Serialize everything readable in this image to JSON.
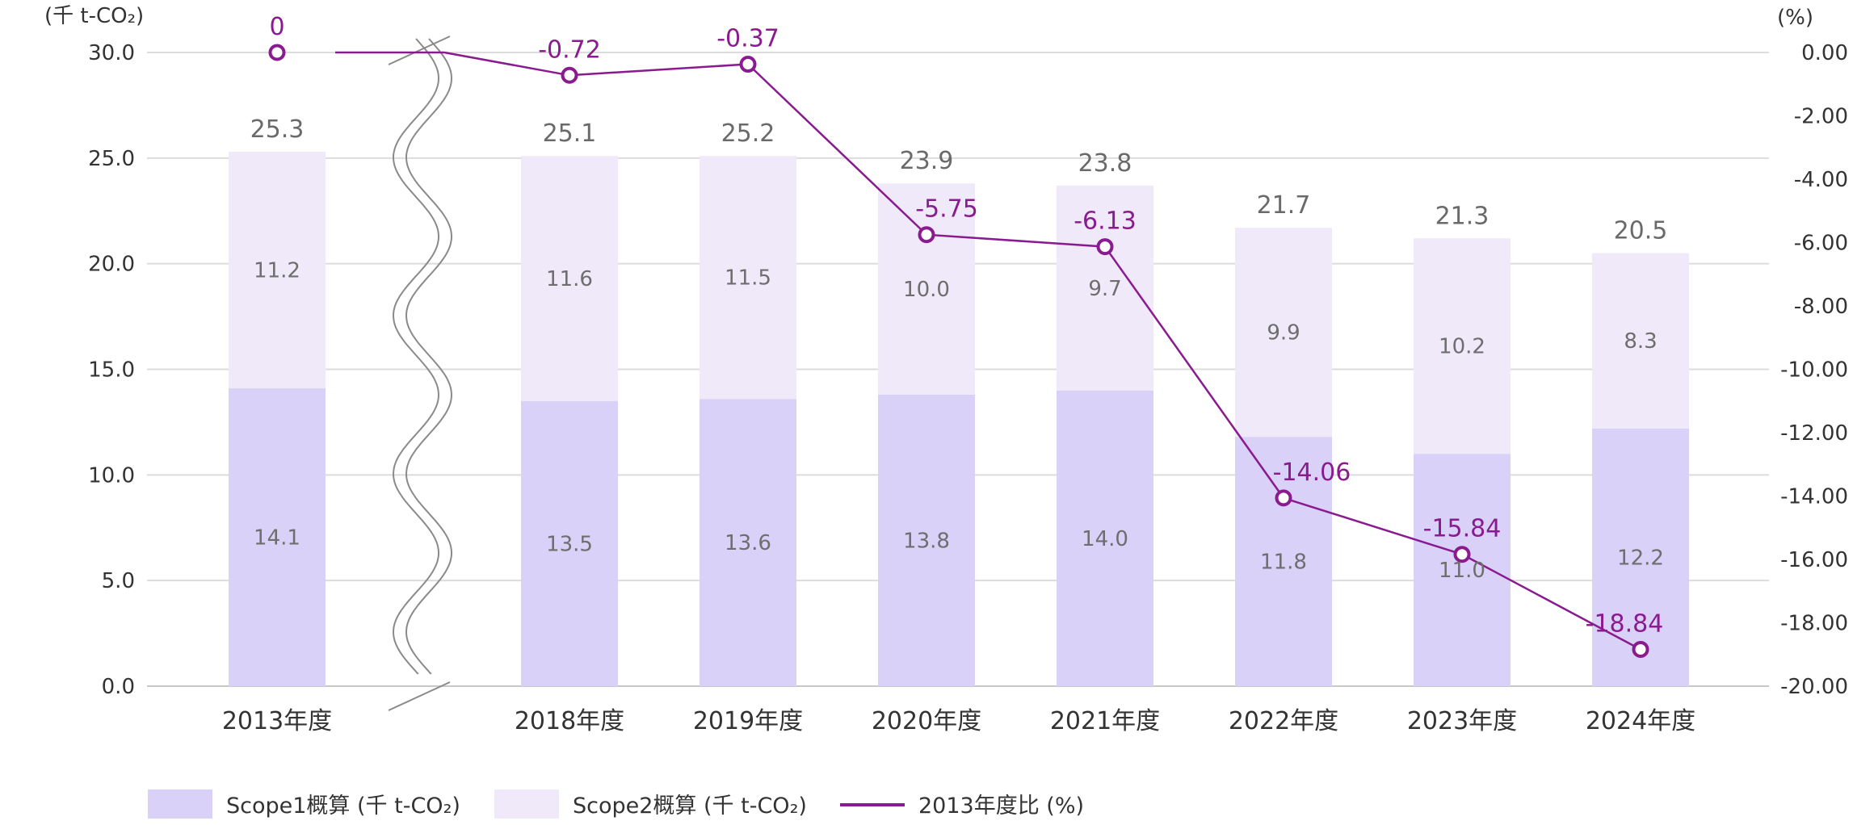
{
  "chart_data": {
    "type": "bar",
    "stacked": true,
    "categories": [
      "2013年度",
      "2018年度",
      "2019年度",
      "2020年度",
      "2021年度",
      "2022年度",
      "2023年度",
      "2024年度"
    ],
    "series": [
      {
        "name": "Scope1概算 (千 t-CO₂)",
        "kind": "bar",
        "axis": "left",
        "color": "#d9d1f7",
        "values": [
          14.1,
          13.5,
          13.6,
          13.8,
          14.0,
          11.8,
          11.0,
          12.2
        ]
      },
      {
        "name": "Scope2概算 (千 t-CO₂)",
        "kind": "bar",
        "axis": "left",
        "color": "#efe9f9",
        "values": [
          11.2,
          11.6,
          11.5,
          10.0,
          9.7,
          9.9,
          10.2,
          8.3
        ]
      },
      {
        "name": "2013年度比 (%)",
        "kind": "line",
        "axis": "right",
        "color": "#8a1a8f",
        "values": [
          0,
          -0.72,
          -0.37,
          -5.75,
          -6.13,
          -14.06,
          -15.84,
          -18.84
        ]
      }
    ],
    "totals": [
      25.3,
      25.1,
      25.2,
      23.9,
      23.8,
      21.7,
      21.3,
      20.5
    ],
    "segment_labels": {
      "scope1": [
        "14.1",
        "13.5",
        "13.6",
        "13.8",
        "14.0",
        "11.8",
        "11.0",
        "12.2"
      ],
      "scope2": [
        "11.2",
        "11.6",
        "11.5",
        "10.0",
        "9.7",
        "9.9",
        "10.2",
        "8.3"
      ]
    },
    "total_labels": [
      "25.3",
      "25.1",
      "25.2",
      "23.9",
      "23.8",
      "21.7",
      "21.3",
      "20.5"
    ],
    "line_labels": [
      "0",
      "-0.72",
      "-0.37",
      "-5.75",
      "-6.13",
      "-14.06",
      "-15.84",
      "-18.84"
    ],
    "y_left": {
      "unit": "(千 t-CO₂)",
      "ylim": [
        0,
        30
      ],
      "ticks": [
        "0.0",
        "5.0",
        "10.0",
        "15.0",
        "20.0",
        "25.0",
        "30.0"
      ]
    },
    "y_right": {
      "unit": "(%)",
      "ylim": [
        -20,
        0
      ],
      "ticks": [
        "0.00",
        "-2.00",
        "-4.00",
        "-6.00",
        "-8.00",
        "-10.00",
        "-12.00",
        "-14.00",
        "-16.00",
        "-18.00",
        "-20.00"
      ]
    },
    "axis_break": "between 2013年度 and 2018年度",
    "grid": true,
    "legend_position": "bottom-left",
    "legend": [
      {
        "label": "Scope1概算 (千 t-CO₂)",
        "swatch": "box",
        "color": "#d9d1f7"
      },
      {
        "label": "Scope2概算 (千 t-CO₂)",
        "swatch": "box",
        "color": "#efe9f9"
      },
      {
        "label": "2013年度比 (%)",
        "swatch": "line",
        "color": "#8a1a8f"
      }
    ]
  }
}
